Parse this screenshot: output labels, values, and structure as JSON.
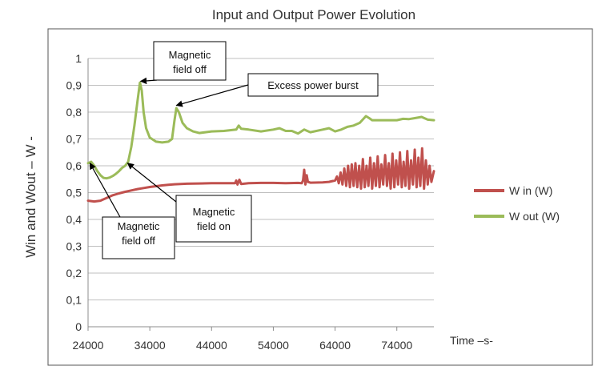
{
  "chart_data": {
    "type": "line",
    "title": "Input and Output Power Evolution",
    "xlabel": "Time –s-",
    "ylabel": "Win and Wout – W -",
    "xlim": [
      24000,
      80000
    ],
    "ylim": [
      0,
      1
    ],
    "x_ticks": [
      "24000",
      "34000",
      "44000",
      "54000",
      "64000",
      "74000"
    ],
    "y_ticks": [
      "0",
      "0,1",
      "0,2",
      "0,3",
      "0,4",
      "0,5",
      "0,6",
      "0,7",
      "0,8",
      "0,9",
      "1"
    ],
    "grid": "horizontal",
    "legend_position": "right",
    "series": [
      {
        "name": "W in (W)",
        "color": "#c0504d",
        "points": [
          [
            24000,
            0.47
          ],
          [
            25000,
            0.467
          ],
          [
            26000,
            0.47
          ],
          [
            27000,
            0.48
          ],
          [
            28000,
            0.49
          ],
          [
            29000,
            0.497
          ],
          [
            30000,
            0.503
          ],
          [
            31000,
            0.508
          ],
          [
            32000,
            0.513
          ],
          [
            33000,
            0.517
          ],
          [
            34000,
            0.521
          ],
          [
            35000,
            0.524
          ],
          [
            36000,
            0.527
          ],
          [
            37000,
            0.529
          ],
          [
            38000,
            0.531
          ],
          [
            40000,
            0.533
          ],
          [
            42000,
            0.534
          ],
          [
            44000,
            0.535
          ],
          [
            46000,
            0.535
          ],
          [
            47800,
            0.535
          ],
          [
            48000,
            0.545
          ],
          [
            48200,
            0.53
          ],
          [
            48500,
            0.548
          ],
          [
            48800,
            0.532
          ],
          [
            50000,
            0.535
          ],
          [
            52000,
            0.536
          ],
          [
            54000,
            0.536
          ],
          [
            56000,
            0.535
          ],
          [
            58000,
            0.536
          ],
          [
            58600,
            0.535
          ],
          [
            58800,
            0.545
          ],
          [
            59000,
            0.585
          ],
          [
            59200,
            0.53
          ],
          [
            59400,
            0.565
          ],
          [
            59600,
            0.54
          ],
          [
            60000,
            0.537
          ],
          [
            62000,
            0.538
          ],
          [
            63000,
            0.54
          ],
          [
            64000,
            0.545
          ],
          [
            64300,
            0.56
          ],
          [
            64600,
            0.535
          ],
          [
            64900,
            0.575
          ],
          [
            65200,
            0.53
          ],
          [
            65500,
            0.59
          ],
          [
            65800,
            0.525
          ],
          [
            66100,
            0.6
          ],
          [
            66400,
            0.52
          ],
          [
            66700,
            0.605
          ],
          [
            67000,
            0.525
          ],
          [
            67300,
            0.61
          ],
          [
            67600,
            0.52
          ],
          [
            67900,
            0.6
          ],
          [
            68200,
            0.515
          ],
          [
            68500,
            0.625
          ],
          [
            68800,
            0.52
          ],
          [
            69100,
            0.6
          ],
          [
            69400,
            0.525
          ],
          [
            69700,
            0.63
          ],
          [
            70000,
            0.515
          ],
          [
            70300,
            0.61
          ],
          [
            70600,
            0.525
          ],
          [
            70900,
            0.635
          ],
          [
            71200,
            0.52
          ],
          [
            71500,
            0.605
          ],
          [
            71800,
            0.53
          ],
          [
            72100,
            0.64
          ],
          [
            72400,
            0.525
          ],
          [
            72700,
            0.61
          ],
          [
            73000,
            0.515
          ],
          [
            73300,
            0.645
          ],
          [
            73600,
            0.52
          ],
          [
            73900,
            0.62
          ],
          [
            74200,
            0.53
          ],
          [
            74500,
            0.65
          ],
          [
            74800,
            0.52
          ],
          [
            75100,
            0.615
          ],
          [
            75400,
            0.525
          ],
          [
            75700,
            0.655
          ],
          [
            76000,
            0.515
          ],
          [
            76300,
            0.62
          ],
          [
            76600,
            0.53
          ],
          [
            76900,
            0.66
          ],
          [
            77200,
            0.52
          ],
          [
            77500,
            0.63
          ],
          [
            77800,
            0.525
          ],
          [
            78100,
            0.665
          ],
          [
            78400,
            0.515
          ],
          [
            78700,
            0.62
          ],
          [
            79000,
            0.53
          ],
          [
            79300,
            0.6
          ],
          [
            79600,
            0.54
          ],
          [
            80000,
            0.58
          ]
        ]
      },
      {
        "name": "W out (W)",
        "color": "#9bbb59",
        "points": [
          [
            24000,
            0.61
          ],
          [
            24500,
            0.615
          ],
          [
            25000,
            0.6
          ],
          [
            25500,
            0.58
          ],
          [
            26000,
            0.565
          ],
          [
            26500,
            0.555
          ],
          [
            27000,
            0.553
          ],
          [
            27500,
            0.556
          ],
          [
            28000,
            0.562
          ],
          [
            28500,
            0.57
          ],
          [
            29000,
            0.58
          ],
          [
            29500,
            0.592
          ],
          [
            30000,
            0.6
          ],
          [
            30500,
            0.615
          ],
          [
            31000,
            0.67
          ],
          [
            31500,
            0.75
          ],
          [
            32000,
            0.84
          ],
          [
            32400,
            0.91
          ],
          [
            32700,
            0.88
          ],
          [
            33000,
            0.8
          ],
          [
            33400,
            0.74
          ],
          [
            34000,
            0.705
          ],
          [
            35000,
            0.69
          ],
          [
            36000,
            0.687
          ],
          [
            37000,
            0.69
          ],
          [
            37600,
            0.7
          ],
          [
            38000,
            0.77
          ],
          [
            38300,
            0.815
          ],
          [
            38700,
            0.8
          ],
          [
            39300,
            0.76
          ],
          [
            40000,
            0.74
          ],
          [
            41000,
            0.728
          ],
          [
            42000,
            0.722
          ],
          [
            43000,
            0.725
          ],
          [
            44000,
            0.728
          ],
          [
            46000,
            0.73
          ],
          [
            48000,
            0.735
          ],
          [
            48400,
            0.75
          ],
          [
            48800,
            0.738
          ],
          [
            50000,
            0.735
          ],
          [
            52000,
            0.728
          ],
          [
            54000,
            0.735
          ],
          [
            55000,
            0.74
          ],
          [
            56000,
            0.73
          ],
          [
            57000,
            0.73
          ],
          [
            58000,
            0.72
          ],
          [
            59000,
            0.735
          ],
          [
            59500,
            0.73
          ],
          [
            60000,
            0.725
          ],
          [
            62000,
            0.735
          ],
          [
            63000,
            0.74
          ],
          [
            64000,
            0.728
          ],
          [
            65000,
            0.735
          ],
          [
            66000,
            0.745
          ],
          [
            67000,
            0.75
          ],
          [
            68000,
            0.76
          ],
          [
            69000,
            0.785
          ],
          [
            69500,
            0.778
          ],
          [
            70000,
            0.77
          ],
          [
            72000,
            0.77
          ],
          [
            74000,
            0.77
          ],
          [
            75000,
            0.775
          ],
          [
            76000,
            0.774
          ],
          [
            77000,
            0.778
          ],
          [
            78000,
            0.782
          ],
          [
            79000,
            0.772
          ],
          [
            80000,
            0.77
          ]
        ]
      }
    ],
    "annotations": [
      {
        "text_lines": [
          "Magnetic",
          "field off"
        ],
        "target": [
          24300,
          0.61
        ]
      },
      {
        "text_lines": [
          "Magnetic",
          "field on"
        ],
        "target": [
          30400,
          0.61
        ]
      },
      {
        "text_lines": [
          "Magnetic",
          "field off"
        ],
        "target": [
          32500,
          0.915
        ]
      },
      {
        "text_lines": [
          "Excess  power burst"
        ],
        "target": [
          38300,
          0.825
        ]
      }
    ]
  }
}
